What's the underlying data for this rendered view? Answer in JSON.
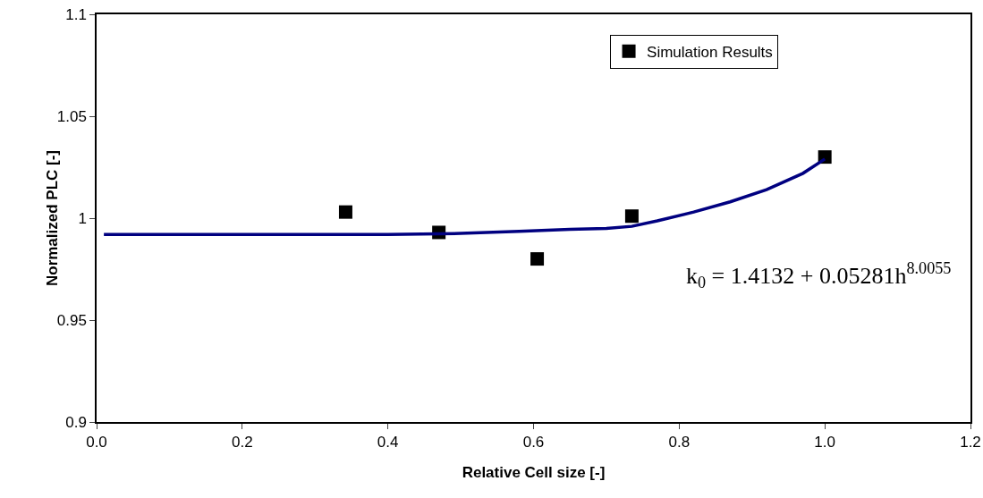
{
  "chart_data": {
    "type": "scatter",
    "xlabel": "Relative Cell size [-]",
    "ylabel": "Normalized PLC [-]",
    "series": [
      {
        "name": "Simulation Results",
        "marker": "square",
        "color": "#000000",
        "x": [
          0.342,
          0.47,
          0.605,
          0.735,
          1.0
        ],
        "values": [
          1.003,
          0.993,
          0.98,
          1.001,
          1.03
        ]
      },
      {
        "type": "line",
        "marker": "none",
        "line_style": "solid",
        "color": "#000080",
        "x": [
          0.01,
          0.2,
          0.4,
          0.5,
          0.58,
          0.65,
          0.7,
          0.735,
          0.77,
          0.82,
          0.87,
          0.92,
          0.97,
          1.0
        ],
        "values": [
          0.992,
          0.992,
          0.992,
          0.9925,
          0.9935,
          0.9945,
          0.995,
          0.996,
          0.9987,
          1.003,
          1.008,
          1.014,
          1.022,
          1.029
        ]
      }
    ],
    "annotations": [
      "k$_{0}$ = 1.4132 + 0.05281h$^{8.0055}$"
    ],
    "xlim": [
      0,
      1.2
    ],
    "xticks": [
      {
        "value": 0,
        "label": "0.0"
      },
      0.2,
      0.4,
      0.6,
      0.8,
      {
        "value": 1,
        "label": "1.0"
      },
      1.2
    ],
    "ylim": [
      0.9,
      1.1
    ],
    "yticks": [
      0.9,
      0.95,
      1,
      1.05,
      1.1
    ],
    "grid": false,
    "legend": "top right"
  }
}
